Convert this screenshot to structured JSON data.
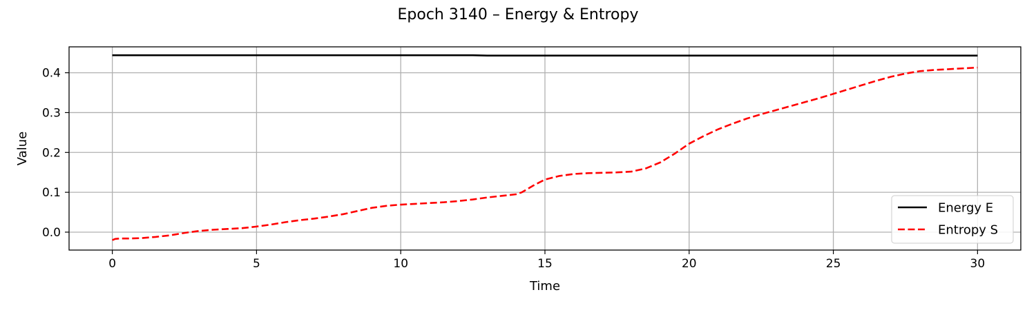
{
  "chart_data": {
    "type": "line",
    "title": "Epoch 3140 – Energy & Entropy",
    "xlabel": "Time",
    "ylabel": "Value",
    "xlim": [
      -1.5,
      31.5
    ],
    "ylim": [
      -0.045,
      0.465
    ],
    "xticks": [
      0,
      5,
      10,
      15,
      20,
      25,
      30
    ],
    "xtick_labels": [
      "0",
      "5",
      "10",
      "15",
      "20",
      "25",
      "30"
    ],
    "yticks": [
      0.0,
      0.1,
      0.2,
      0.3,
      0.4
    ],
    "ytick_labels": [
      "0.0",
      "0.1",
      "0.2",
      "0.3",
      "0.4"
    ],
    "grid": true,
    "legend_position": "lower-right",
    "series": [
      {
        "name": "Energy E",
        "color": "#000000",
        "style": "solid",
        "x": [
          0,
          2,
          4,
          6,
          8,
          10,
          12,
          12.5,
          13,
          14,
          16,
          18,
          20,
          22,
          24,
          26,
          28,
          30
        ],
        "y": [
          0.444,
          0.444,
          0.444,
          0.444,
          0.444,
          0.444,
          0.444,
          0.444,
          0.443,
          0.443,
          0.443,
          0.443,
          0.443,
          0.443,
          0.443,
          0.443,
          0.443,
          0.443
        ]
      },
      {
        "name": "Entropy S",
        "color": "#ff0000",
        "style": "dashed",
        "x": [
          0,
          0.1,
          0.25,
          0.5,
          1,
          1.5,
          2,
          2.5,
          3,
          3.5,
          4,
          4.5,
          5,
          5.5,
          6,
          6.5,
          7,
          7.5,
          8,
          8.5,
          9,
          9.5,
          10,
          10.5,
          11,
          11.5,
          12,
          12.5,
          13,
          13.5,
          14,
          14.2,
          14.6,
          15,
          15.5,
          16,
          16.5,
          17,
          17.5,
          18,
          18.5,
          19,
          19.5,
          20,
          20.5,
          21,
          21.5,
          22,
          22.5,
          23,
          23.5,
          24,
          24.5,
          25,
          25.5,
          26,
          26.5,
          27,
          27.5,
          28,
          28.5,
          29,
          29.5,
          30
        ],
        "y": [
          -0.02,
          -0.017,
          -0.016,
          -0.016,
          -0.015,
          -0.012,
          -0.008,
          -0.002,
          0.003,
          0.006,
          0.008,
          0.01,
          0.014,
          0.019,
          0.025,
          0.03,
          0.034,
          0.039,
          0.045,
          0.053,
          0.061,
          0.066,
          0.069,
          0.071,
          0.073,
          0.075,
          0.078,
          0.082,
          0.087,
          0.091,
          0.095,
          0.1,
          0.117,
          0.132,
          0.141,
          0.146,
          0.148,
          0.149,
          0.15,
          0.152,
          0.16,
          0.175,
          0.197,
          0.222,
          0.241,
          0.258,
          0.272,
          0.285,
          0.296,
          0.306,
          0.316,
          0.326,
          0.336,
          0.347,
          0.358,
          0.369,
          0.38,
          0.39,
          0.398,
          0.404,
          0.407,
          0.409,
          0.411,
          0.413
        ]
      }
    ]
  }
}
